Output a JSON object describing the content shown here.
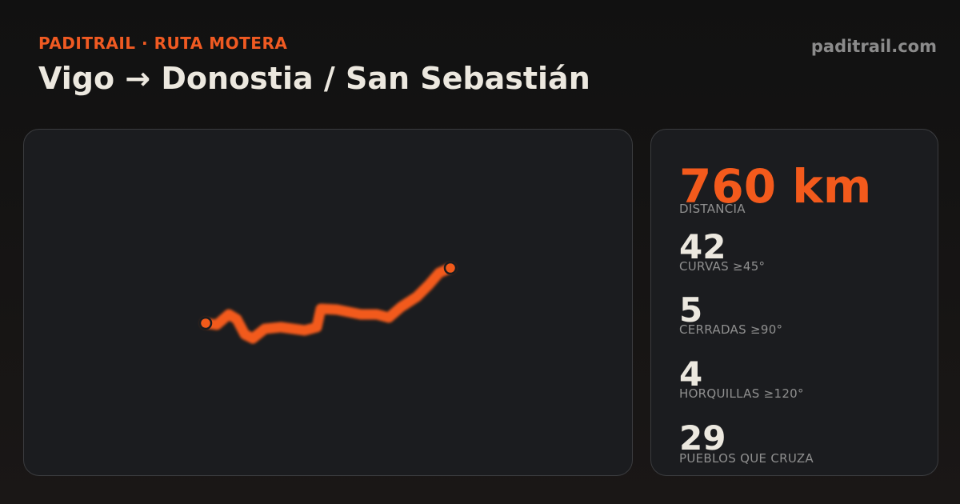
{
  "header": {
    "brand": "PADITRAIL · RUTA MOTERA",
    "title": "Vigo → Donostia / San Sebastián",
    "site": "paditrail.com"
  },
  "stats": [
    {
      "value": "760 km",
      "label": "DISTANCIA"
    },
    {
      "value": "42",
      "label": "CURVAS ≥45°"
    },
    {
      "value": "5",
      "label": "CERRADAS ≥90°"
    },
    {
      "value": "4",
      "label": "HORQUILLAS ≥120°"
    },
    {
      "value": "29",
      "label": "PUEBLOS QUE CRUZA"
    }
  ]
}
